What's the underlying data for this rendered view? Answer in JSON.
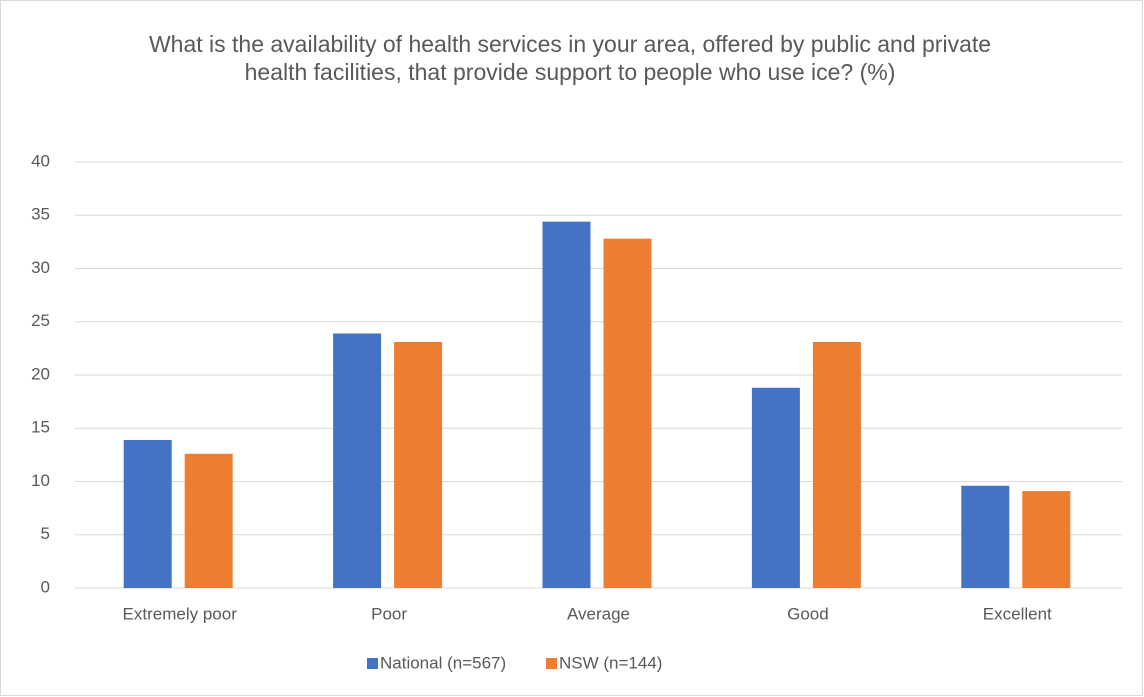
{
  "chart_data": {
    "type": "bar",
    "title": "What is the availability of health services in your area, offered by public and private health facilities, that provide support to people who use ice? (%)",
    "categories": [
      "Extremely poor",
      "Poor",
      "Average",
      "Good",
      "Excellent"
    ],
    "series": [
      {
        "name": "National (n=567)",
        "color": "#4472c4",
        "values": [
          13.9,
          23.9,
          34.4,
          18.8,
          9.6
        ]
      },
      {
        "name": "NSW (n=144)",
        "color": "#ed7d31",
        "values": [
          12.6,
          23.1,
          32.8,
          23.1,
          9.1
        ]
      }
    ],
    "ylim": [
      0,
      40
    ],
    "yticks": [
      0,
      5,
      10,
      15,
      20,
      25,
      30,
      35,
      40
    ],
    "grid": true,
    "legend": "bottom"
  }
}
